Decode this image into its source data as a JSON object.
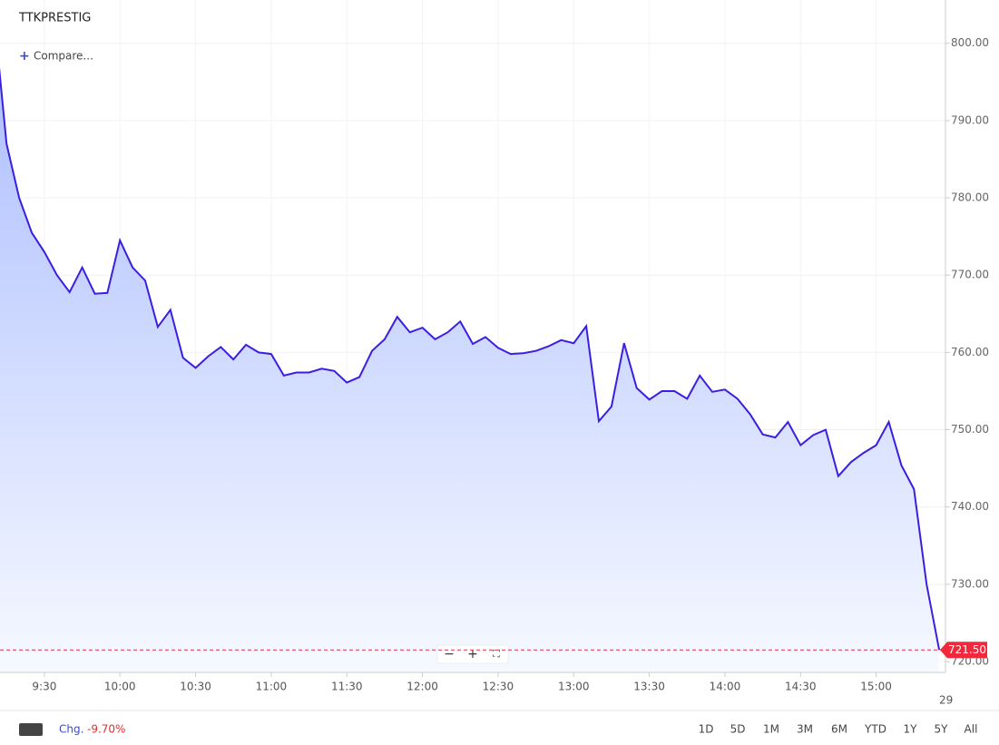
{
  "chart_data": {
    "type": "area",
    "title": "TTKPRESTIG",
    "compare": "Compare...",
    "x": [
      552,
      555,
      560,
      565,
      570,
      575,
      580,
      585,
      590,
      595,
      600,
      605,
      610,
      615,
      620,
      625,
      630,
      635,
      640,
      645,
      650,
      655,
      660,
      665,
      670,
      675,
      680,
      685,
      690,
      695,
      700,
      705,
      710,
      715,
      720,
      725,
      730,
      735,
      740,
      745,
      750,
      755,
      760,
      765,
      770,
      775,
      780,
      785,
      790,
      795,
      800,
      805,
      810,
      815,
      820,
      825,
      830,
      835,
      840,
      845,
      850,
      855,
      860,
      865,
      870,
      875,
      880,
      885,
      890,
      895,
      900,
      905,
      910,
      915,
      920,
      925
    ],
    "values": [
      797,
      787,
      780,
      775.5,
      773,
      770,
      767.8,
      771,
      767.6,
      767.7,
      774.5,
      771,
      769.3,
      763.3,
      765.5,
      759.3,
      758,
      759.5,
      760.7,
      759.1,
      761,
      760,
      759.8,
      757,
      757.4,
      757.4,
      757.9,
      757.6,
      756.1,
      756.8,
      760.2,
      761.7,
      764.6,
      762.6,
      763.2,
      761.7,
      762.6,
      764,
      761.1,
      762,
      760.6,
      759.8,
      759.9,
      760.2,
      760.8,
      761.6,
      761.2,
      763.4,
      751.1,
      753,
      761.2,
      755.4,
      753.9,
      755,
      755,
      754,
      757,
      754.9,
      755.2,
      754,
      752,
      749.4,
      749,
      751,
      748,
      749.3,
      750,
      744,
      745.8,
      747,
      748,
      751,
      745.4,
      742.3,
      730,
      721.5
    ],
    "color": "#3a1fe0",
    "xlim": [
      552.4,
      927.5
    ],
    "ylim": [
      718.6,
      805.6
    ],
    "xticks": [
      {
        "value": 570,
        "label": "9:30"
      },
      {
        "value": 600,
        "label": "10:00"
      },
      {
        "value": 630,
        "label": "10:30"
      },
      {
        "value": 660,
        "label": "11:00"
      },
      {
        "value": 690,
        "label": "11:30"
      },
      {
        "value": 720,
        "label": "12:00"
      },
      {
        "value": 750,
        "label": "12:30"
      },
      {
        "value": 780,
        "label": "13:00"
      },
      {
        "value": 810,
        "label": "13:30"
      },
      {
        "value": 840,
        "label": "14:00"
      },
      {
        "value": 870,
        "label": "14:30"
      },
      {
        "value": 900,
        "label": "15:00"
      }
    ],
    "yticks": [
      {
        "value": 720,
        "label": "720.00"
      },
      {
        "value": 730,
        "label": "730.00"
      },
      {
        "value": 740,
        "label": "740.00"
      },
      {
        "value": 750,
        "label": "750.00"
      },
      {
        "value": 760,
        "label": "760.00"
      },
      {
        "value": 770,
        "label": "770.00"
      },
      {
        "value": 780,
        "label": "780.00"
      },
      {
        "value": 790,
        "label": "790.00"
      },
      {
        "value": 800,
        "label": "800.00"
      }
    ],
    "grid": true,
    "last_price": {
      "value": 721.5,
      "label": "721.50"
    },
    "date_label": "29",
    "change_label": "Chg.",
    "change": "-9.70%",
    "ranges": [
      "1D",
      "5D",
      "1M",
      "3M",
      "6M",
      "YTD",
      "1Y",
      "5Y",
      "All"
    ]
  }
}
